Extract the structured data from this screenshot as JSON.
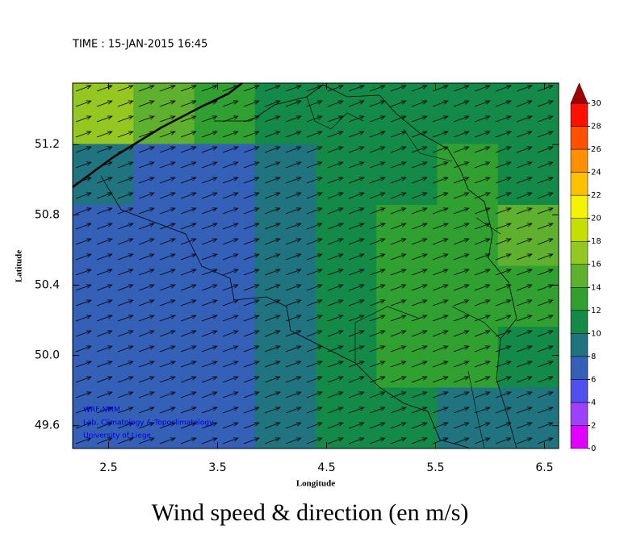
{
  "header": {
    "time": "TIME : 15-JAN-2015 16:45"
  },
  "map": {
    "title": "Wind speed & direction (en m/s)",
    "x_label": "Longitude",
    "y_label": "Latitude",
    "xlim": [
      2.17,
      6.63
    ],
    "ylim": [
      49.47,
      51.55
    ],
    "xticks": [
      2.5,
      3.5,
      4.5,
      5.5,
      6.5
    ],
    "yticks": [
      49.6,
      {
        "value": 50,
        "label": "50.0"
      },
      50.4,
      50.8,
      51.2
    ],
    "speed_grid": [
      [
        16,
        15,
        12,
        10,
        10,
        10,
        10,
        10
      ],
      [
        9,
        7,
        7,
        9,
        10,
        11,
        12,
        11
      ],
      [
        7,
        6,
        6,
        8,
        10,
        12,
        13,
        14
      ],
      [
        7,
        6,
        6,
        9,
        11,
        12,
        13,
        13
      ],
      [
        6,
        6,
        7,
        9,
        11,
        12,
        12,
        11
      ],
      [
        6,
        6,
        7,
        9,
        10,
        10,
        9,
        8
      ]
    ],
    "arrow_direction_deg": 20,
    "credits": [
      "WRF-NMM",
      "Lab. Climatology & Topoclimatology",
      "University of Liege"
    ]
  },
  "colorbar": {
    "ticks": [
      0,
      2,
      4,
      6,
      8,
      10,
      12,
      14,
      16,
      18,
      20,
      22,
      24,
      26,
      28,
      30
    ],
    "colors": [
      "#e000ff",
      "#a040ff",
      "#5050f0",
      "#3460b8",
      "#1f7480",
      "#138a48",
      "#30a030",
      "#60b030",
      "#94c820",
      "#c4e000",
      "#f4f400",
      "#ffc000",
      "#ff9000",
      "#ff5000",
      "#ff1000"
    ],
    "extend_color": "#a00000"
  }
}
